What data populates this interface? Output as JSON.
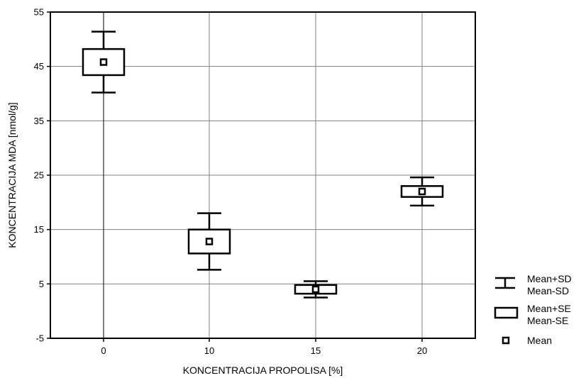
{
  "chart_data": {
    "type": "box",
    "title": "",
    "xlabel": "KONCENTRACIJA PROPOLISA [%]",
    "ylabel": "KONCENTRACIJA MDA [nmol/g]",
    "categories": [
      "0",
      "10",
      "15",
      "20"
    ],
    "yticks": [
      "55",
      "45",
      "35",
      "25",
      "15",
      "5",
      "-5"
    ],
    "ylim": [
      -5,
      55
    ],
    "grid": true,
    "series": [
      {
        "category": "0",
        "mean": 45.8,
        "mean_plus_se": 48.2,
        "mean_minus_se": 43.4,
        "mean_plus_sd": 51.4,
        "mean_minus_sd": 40.2
      },
      {
        "category": "10",
        "mean": 12.8,
        "mean_plus_se": 15.0,
        "mean_minus_se": 10.6,
        "mean_plus_sd": 18.0,
        "mean_minus_sd": 7.6
      },
      {
        "category": "15",
        "mean": 4.0,
        "mean_plus_se": 4.8,
        "mean_minus_se": 3.2,
        "mean_plus_sd": 5.5,
        "mean_minus_sd": 2.5
      },
      {
        "category": "20",
        "mean": 22.0,
        "mean_plus_se": 23.0,
        "mean_minus_se": 21.0,
        "mean_plus_sd": 24.6,
        "mean_minus_sd": 19.4
      }
    ],
    "legend": {
      "placement": "right",
      "items": [
        {
          "key": "sd",
          "lines": [
            "Mean+SD",
            "Mean-SD"
          ]
        },
        {
          "key": "se",
          "lines": [
            "Mean+SE",
            "Mean-SE"
          ]
        },
        {
          "key": "mean",
          "lines": [
            "Mean"
          ]
        }
      ]
    },
    "colors": {
      "line": "#000000",
      "grid": "#808080",
      "background": "#ffffff"
    }
  }
}
